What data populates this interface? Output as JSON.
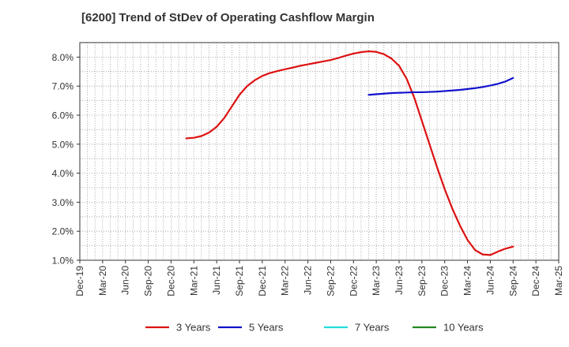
{
  "chart_data": {
    "type": "line",
    "title": "[6200]  Trend of StDev of Operating Cashflow Margin",
    "xlabel": "",
    "ylabel": "",
    "x_ticks": [
      "Dec-19",
      "Mar-20",
      "Jun-20",
      "Sep-20",
      "Dec-20",
      "Mar-21",
      "Jun-21",
      "Sep-21",
      "Dec-21",
      "Mar-22",
      "Jun-22",
      "Sep-22",
      "Dec-22",
      "Mar-23",
      "Jun-23",
      "Sep-23",
      "Dec-23",
      "Mar-24",
      "Jun-24",
      "Sep-24",
      "Dec-24",
      "Mar-25"
    ],
    "y_ticks": [
      "1.0%",
      "2.0%",
      "3.0%",
      "4.0%",
      "5.0%",
      "6.0%",
      "7.0%",
      "8.0%"
    ],
    "ylim": [
      1.0,
      8.5
    ],
    "grid": true,
    "legend_position": "bottom",
    "series": [
      {
        "name": "3 Years",
        "color": "#dd1111",
        "x": [
          "Feb-21",
          "Mar-21",
          "Apr-21",
          "May-21",
          "Jun-21",
          "Jul-21",
          "Aug-21",
          "Sep-21",
          "Oct-21",
          "Nov-21",
          "Dec-21",
          "Jan-22",
          "Feb-22",
          "Mar-22",
          "Apr-22",
          "May-22",
          "Jun-22",
          "Jul-22",
          "Aug-22",
          "Sep-22",
          "Oct-22",
          "Nov-22",
          "Dec-22",
          "Jan-23",
          "Feb-23",
          "Mar-23",
          "Apr-23",
          "May-23",
          "Jun-23",
          "Jul-23",
          "Aug-23",
          "Sep-23",
          "Oct-23",
          "Nov-23",
          "Dec-23",
          "Jan-24",
          "Feb-24",
          "Mar-24",
          "Apr-24",
          "May-24",
          "Jun-24",
          "Jul-24",
          "Aug-24",
          "Sep-24"
        ],
        "values": [
          5.2,
          5.22,
          5.28,
          5.4,
          5.6,
          5.9,
          6.3,
          6.7,
          7.0,
          7.2,
          7.35,
          7.45,
          7.52,
          7.58,
          7.64,
          7.7,
          7.75,
          7.8,
          7.85,
          7.9,
          7.97,
          8.05,
          8.12,
          8.17,
          8.2,
          8.18,
          8.1,
          7.95,
          7.7,
          7.25,
          6.6,
          5.8,
          5.0,
          4.2,
          3.45,
          2.78,
          2.2,
          1.7,
          1.35,
          1.2,
          1.18,
          1.3,
          1.4,
          1.47
        ]
      },
      {
        "name": "5 Years",
        "color": "#1111cc",
        "x": [
          "Feb-23",
          "Mar-23",
          "Apr-23",
          "May-23",
          "Jun-23",
          "Jul-23",
          "Aug-23",
          "Sep-23",
          "Oct-23",
          "Nov-23",
          "Dec-23",
          "Jan-24",
          "Feb-24",
          "Mar-24",
          "Apr-24",
          "May-24",
          "Jun-24",
          "Jul-24",
          "Aug-24",
          "Sep-24"
        ],
        "values": [
          6.7,
          6.72,
          6.74,
          6.76,
          6.77,
          6.78,
          6.79,
          6.79,
          6.8,
          6.81,
          6.83,
          6.85,
          6.87,
          6.9,
          6.93,
          6.97,
          7.02,
          7.08,
          7.16,
          7.28
        ]
      },
      {
        "name": "7 Years",
        "color": "#22dddd",
        "x": [],
        "values": []
      },
      {
        "name": "10 Years",
        "color": "#228822",
        "x": [],
        "values": []
      }
    ]
  }
}
